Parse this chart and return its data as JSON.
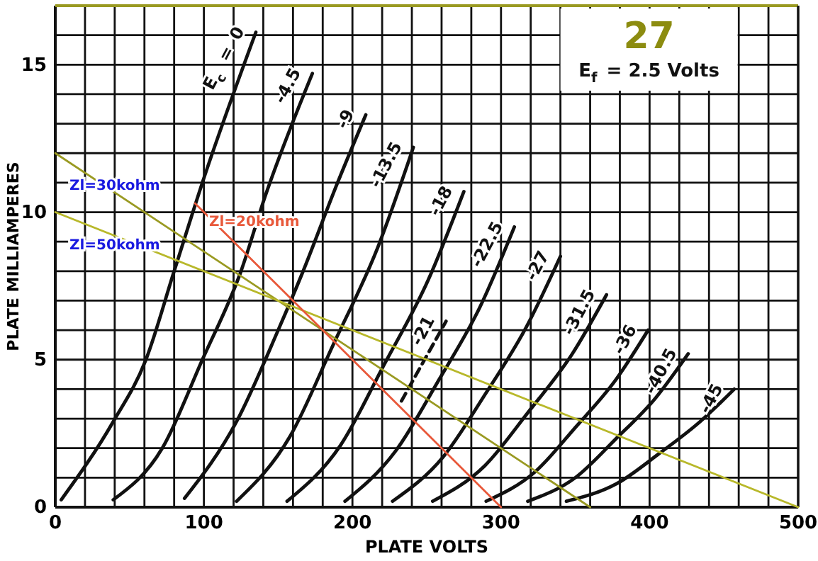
{
  "chart_data": {
    "type": "line",
    "title": "27",
    "subtitle": "E$_{f}$ = 2.5 Volts",
    "xlabel": "PLATE VOLTS",
    "ylabel": "PLATE MILLIAMPERES",
    "xlim": [
      0,
      500
    ],
    "ylim": [
      0,
      17
    ],
    "xticks": [
      0,
      {
        "value": 20,
        "label": null
      },
      {
        "value": 40,
        "label": null
      },
      {
        "value": 60,
        "label": null
      },
      {
        "value": 80,
        "label": null
      },
      100,
      {
        "value": 120,
        "label": null
      },
      {
        "value": 140,
        "label": null
      },
      {
        "value": 160,
        "label": null
      },
      {
        "value": 180,
        "label": null
      },
      200,
      {
        "value": 220,
        "label": null
      },
      {
        "value": 240,
        "label": null
      },
      {
        "value": 260,
        "label": null
      },
      {
        "value": 280,
        "label": null
      },
      300,
      {
        "value": 320,
        "label": null
      },
      {
        "value": 340,
        "label": null
      },
      {
        "value": 360,
        "label": null
      },
      {
        "value": 380,
        "label": null
      },
      400,
      {
        "value": 420,
        "label": null
      },
      {
        "value": 440,
        "label": null
      },
      {
        "value": 460,
        "label": null
      },
      {
        "value": 480,
        "label": null
      },
      500
    ],
    "yticks": [
      0,
      {
        "value": 1,
        "label": null
      },
      {
        "value": 2,
        "label": null
      },
      {
        "value": 3,
        "label": null
      },
      {
        "value": 4,
        "label": null
      },
      5,
      {
        "value": 6,
        "label": null
      },
      {
        "value": 7,
        "label": null
      },
      {
        "value": 8,
        "label": null
      },
      {
        "value": 9,
        "label": null
      },
      10,
      {
        "value": 11,
        "label": null
      },
      {
        "value": 12,
        "label": null
      },
      {
        "value": 13,
        "label": null
      },
      {
        "value": 14,
        "label": null
      },
      15,
      {
        "value": 16,
        "label": null
      },
      {
        "value": 17,
        "label": null
      }
    ],
    "grid": true,
    "line_style": "solid",
    "series": [
      {
        "name": "E$_{c}$ = 0",
        "color": "#111111",
        "x": [
          4,
          39,
          61,
          80,
          99,
          135
        ],
        "values": [
          0.25,
          2.9,
          5,
          8,
          11,
          16.1
        ]
      },
      {
        "name": "-4.5",
        "color": "#111111",
        "x": [
          39,
          72,
          99,
          125,
          141,
          173
        ],
        "values": [
          0.25,
          2,
          5,
          8,
          10.5,
          14.7
        ]
      },
      {
        "name": "-9",
        "color": "#111111",
        "x": [
          87,
          122,
          150,
          166,
          190,
          209
        ],
        "values": [
          0.3,
          2.9,
          6,
          7.9,
          11,
          13.3
        ]
      },
      {
        "name": "-13.5",
        "color": "#111111",
        "x": [
          122,
          158,
          187,
          217,
          241
        ],
        "values": [
          0.2,
          2.4,
          5.5,
          8.8,
          12.2
        ]
      },
      {
        "name": "-18",
        "color": "#111111",
        "x": [
          156,
          192,
          221,
          251,
          275
        ],
        "values": [
          0.2,
          2.1,
          4.8,
          7.7,
          10.7
        ]
      },
      {
        "name": "-21",
        "color": "#111111",
        "line_style": "dashed",
        "x": [
          233,
          263
        ],
        "values": [
          3.6,
          6.3
        ]
      },
      {
        "name": "-22.5",
        "color": "#111111",
        "x": [
          195,
          229,
          258,
          286,
          309
        ],
        "values": [
          0.2,
          1.9,
          4.3,
          6.8,
          9.5
        ]
      },
      {
        "name": "-27",
        "color": "#111111",
        "x": [
          227,
          261,
          289,
          317,
          340
        ],
        "values": [
          0.2,
          1.7,
          3.8,
          6.1,
          8.5
        ]
      },
      {
        "name": "-31.5",
        "color": "#111111",
        "x": [
          254,
          289,
          318,
          348,
          371
        ],
        "values": [
          0.2,
          1.4,
          3.2,
          5.2,
          7.2
        ]
      },
      {
        "name": "-36",
        "color": "#111111",
        "x": [
          290,
          323,
          350,
          377,
          399
        ],
        "values": [
          0.2,
          1.2,
          2.7,
          4.3,
          6
        ]
      },
      {
        "name": "-40.5",
        "color": "#111111",
        "x": [
          318,
          350,
          377,
          404,
          426
        ],
        "values": [
          0.2,
          1,
          2.3,
          3.7,
          5.2
        ]
      },
      {
        "name": "-45",
        "color": "#111111",
        "x": [
          344,
          378,
          406,
          434,
          457
        ],
        "values": [
          0.2,
          0.8,
          1.8,
          2.9,
          4
        ]
      },
      {
        "name": "Zl=30kohm",
        "color": "#9a9a22",
        "x": [
          0,
          360
        ],
        "values": [
          12,
          0
        ]
      },
      {
        "name": "Zl=50kohm",
        "color": "#b8b82a",
        "x": [
          0,
          500
        ],
        "values": [
          10,
          0
        ]
      },
      {
        "name": "Zl=20kohm",
        "color": "#e8583a",
        "x": [
          94,
          300
        ],
        "values": [
          10.3,
          0
        ]
      }
    ]
  }
}
